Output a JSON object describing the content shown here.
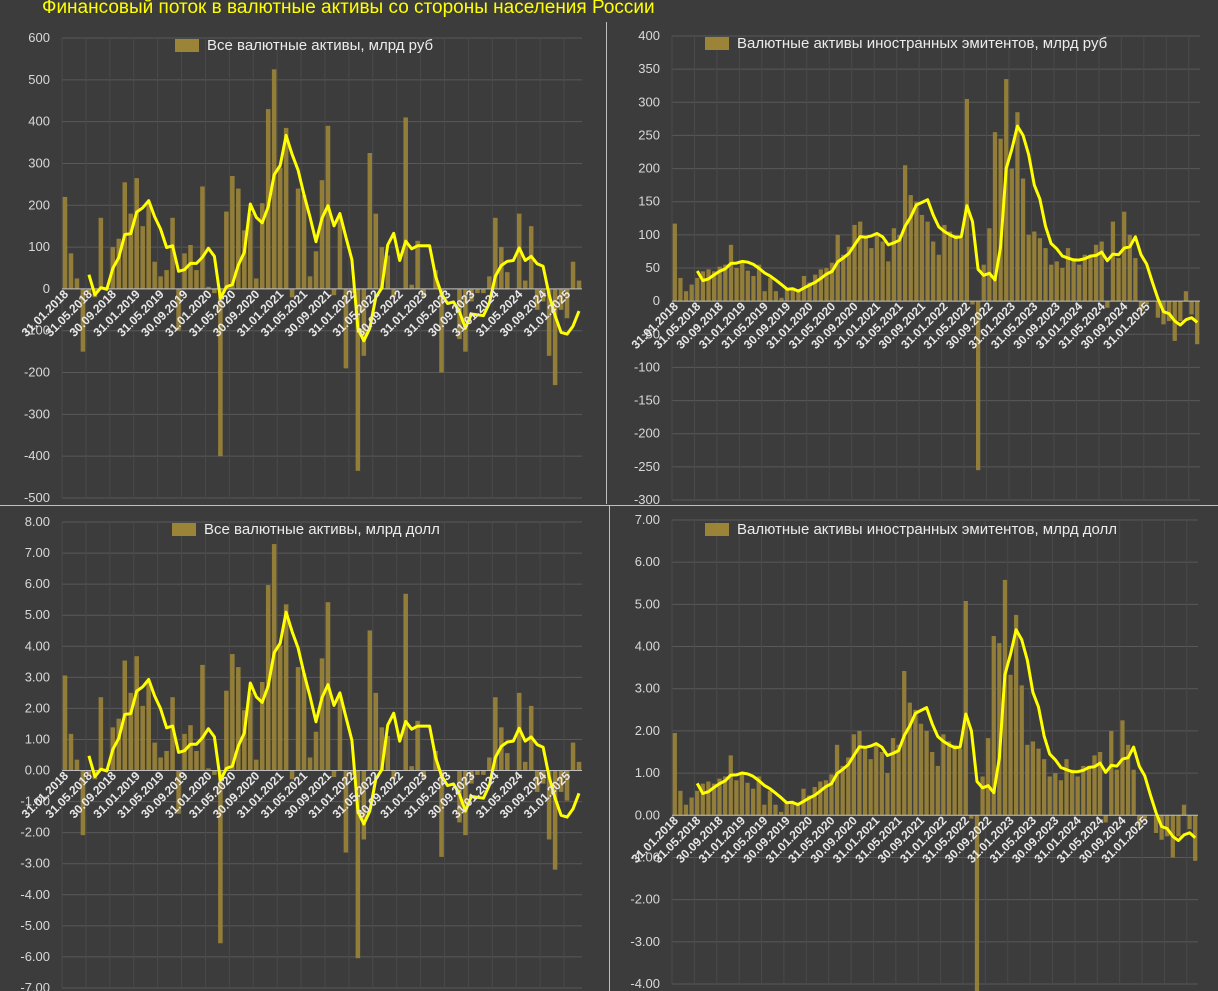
{
  "title": "Финансовый поток в валютные активы со стороны населения России",
  "colors": {
    "bar": "#9b8438",
    "line": "#ffff00",
    "grid": "#595959",
    "text": "#d9d9d9",
    "background": "#3c3c3c"
  },
  "x_tick_labels": [
    "31.01.2018",
    "31.05.2018",
    "30.09.2018",
    "31.01.2019",
    "31.05.2019",
    "30.09.2019",
    "31.01.2020",
    "31.05.2020",
    "30.09.2020",
    "31.01.2021",
    "31.05.2021",
    "30.09.2021",
    "31.01.2022",
    "31.05.2022",
    "30.09.2022",
    "31.01.2023",
    "31.05.2023",
    "30.09.2023",
    "31.01.2024",
    "31.05.2024",
    "30.09.2024",
    "31.01.2025"
  ],
  "chart_data": [
    {
      "type": "bar",
      "legend": "Все валютные активы, млрд руб",
      "ylim": [
        -500,
        600
      ],
      "yticks": [
        "-500",
        "-400",
        "-300",
        "-200",
        "-100",
        "0",
        "100",
        "200",
        "300",
        "400",
        "500",
        "600"
      ],
      "values": [
        220,
        85,
        25,
        -150,
        -10,
        -20,
        170,
        5,
        100,
        120,
        255,
        180,
        265,
        150,
        205,
        65,
        30,
        45,
        170,
        -100,
        85,
        105,
        45,
        245,
        5,
        -10,
        -400,
        185,
        270,
        240,
        140,
        180,
        25,
        205,
        430,
        525,
        290,
        385,
        -20,
        240,
        225,
        30,
        90,
        260,
        390,
        -15,
        175,
        -190,
        -10,
        -435,
        -160,
        325,
        180,
        100,
        80,
        -20,
        0,
        410,
        10,
        115,
        -20,
        0,
        45,
        -200,
        0,
        0,
        -120,
        -150,
        -30,
        -10,
        -10,
        30,
        170,
        100,
        40,
        0,
        180,
        20,
        150,
        -50,
        -30,
        -160,
        -230,
        -50,
        -70,
        65,
        20
      ],
      "line": [
        null,
        null,
        null,
        null,
        null,
        null,
        null,
        null,
        null,
        null,
        null,
        null,
        null,
        null,
        null,
        null,
        null,
        null,
        null,
        null,
        null,
        null,
        null,
        null,
        null,
        null,
        null,
        null,
        null,
        null,
        null,
        null,
        null,
        null,
        null,
        null,
        null,
        null,
        null,
        null,
        null,
        null,
        null,
        null,
        null,
        null,
        null,
        null,
        null,
        null,
        null,
        null,
        null,
        null,
        null,
        null,
        null,
        null,
        null,
        null,
        null,
        null,
        null,
        null,
        null,
        null,
        null,
        null,
        null,
        null,
        null,
        null,
        null,
        null,
        null,
        null,
        null,
        null,
        null,
        null,
        null,
        null,
        null,
        null,
        null,
        null,
        null
      ]
    },
    {
      "type": "bar",
      "legend": "Валютные активы иностранных эмитентов, млрд руб",
      "ylim": [
        -300,
        400
      ],
      "yticks": [
        "-300",
        "-250",
        "-200",
        "-150",
        "-100",
        "-50",
        "0",
        "50",
        "100",
        "150",
        "200",
        "250",
        "300",
        "350",
        "400"
      ],
      "values": [
        117,
        35,
        15,
        25,
        35,
        45,
        48,
        45,
        52,
        55,
        85,
        50,
        58,
        46,
        38,
        55,
        15,
        35,
        15,
        5,
        20,
        18,
        18,
        38,
        28,
        40,
        48,
        50,
        58,
        100,
        70,
        82,
        115,
        120,
        95,
        80,
        100,
        90,
        60,
        110,
        100,
        205,
        160,
        150,
        130,
        120,
        90,
        70,
        115,
        105,
        100,
        95,
        305,
        -5,
        -255,
        55,
        110,
        255,
        245,
        335,
        200,
        285,
        185,
        100,
        105,
        95,
        80,
        55,
        60,
        50,
        80,
        65,
        55,
        70,
        70,
        85,
        90,
        -10,
        120,
        65,
        135,
        100,
        65,
        -15,
        -5,
        0,
        -25,
        -35,
        -30,
        -60,
        -30,
        15,
        -20,
        -65
      ],
      "line": null
    },
    {
      "type": "bar",
      "legend": "Все валютные активы, млрд долл",
      "ylim": [
        -7,
        8
      ],
      "yticks": [
        "-7.00",
        "-6.00",
        "-5.00",
        "-4.00",
        "-3.00",
        "-2.00",
        "-1.00",
        "0.00",
        "1.00",
        "2.00",
        "3.00",
        "4.00",
        "5.00",
        "6.00",
        "7.00",
        "8.00"
      ],
      "values": null,
      "line": null
    },
    {
      "type": "bar",
      "legend": "Валютные активы иностранных эмитентов, млрд долл",
      "ylim": [
        -4,
        7
      ],
      "yticks": [
        "-4.00",
        "-3.00",
        "-2.00",
        "-1.00",
        "0.00",
        "1.00",
        "2.00",
        "3.00",
        "4.00",
        "5.00",
        "6.00",
        "7.00"
      ],
      "values": null,
      "line": null
    }
  ]
}
